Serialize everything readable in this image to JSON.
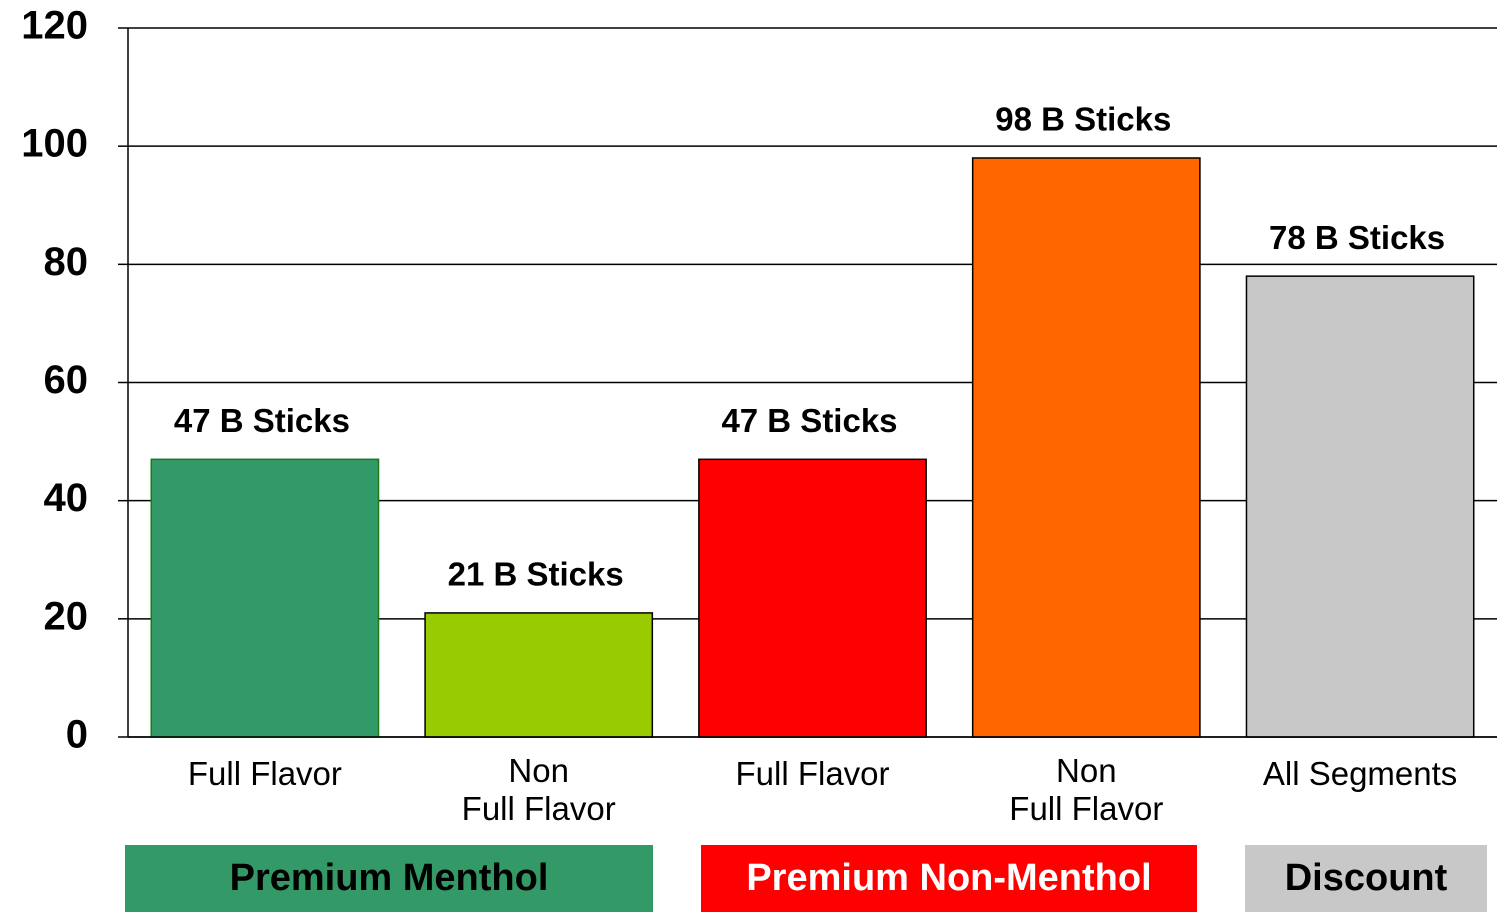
{
  "chart_data": {
    "type": "bar",
    "categories": [
      "Full Flavor",
      "Non\nFull Flavor",
      "Full Flavor",
      "Non\nFull Flavor",
      "All Segments"
    ],
    "values": [
      47,
      21,
      47,
      98,
      78
    ],
    "value_labels": [
      "47 B Sticks",
      "21 B Sticks",
      "47 B Sticks",
      "98 B Sticks",
      "78 B Sticks"
    ],
    "colors": [
      "#339966",
      "#99cc00",
      "#ff0000",
      "#ff6600",
      "#c8c8c8"
    ],
    "ylim": [
      0,
      120
    ],
    "yticks": [
      0,
      20,
      40,
      60,
      80,
      100,
      120
    ],
    "grid": true,
    "groups": [
      {
        "label": "Premium Menthol",
        "color": "#339966",
        "text_color": "#000000"
      },
      {
        "label": "Premium Non-Menthol",
        "color": "#ff0000",
        "text_color": "#ffffff"
      },
      {
        "label": "Discount",
        "color": "#c8c8c8",
        "text_color": "#000000"
      }
    ]
  }
}
